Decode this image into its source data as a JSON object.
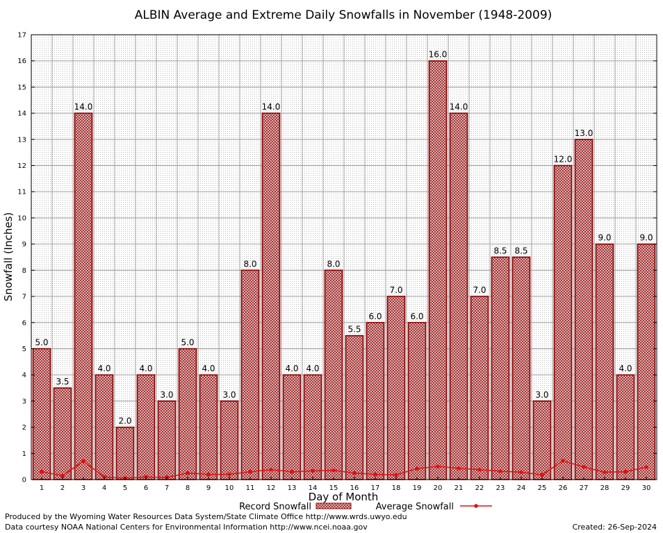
{
  "chart_data": {
    "type": "bar",
    "title": "ALBIN Average and Extreme Daily Snowfalls in November (1948-2009)",
    "xlabel": "Day of Month",
    "ylabel": "Snowfall (Inches)",
    "ylim": [
      0,
      17
    ],
    "yticks": [
      0,
      1,
      2,
      3,
      4,
      5,
      6,
      7,
      8,
      9,
      10,
      11,
      12,
      13,
      14,
      15,
      16,
      17
    ],
    "grid": true,
    "categories": [
      "1",
      "2",
      "3",
      "4",
      "5",
      "6",
      "7",
      "8",
      "9",
      "10",
      "11",
      "12",
      "13",
      "14",
      "15",
      "16",
      "17",
      "18",
      "19",
      "20",
      "21",
      "22",
      "23",
      "24",
      "25",
      "26",
      "27",
      "28",
      "29",
      "30"
    ],
    "series": [
      {
        "name": "Record Snowfall",
        "kind": "bar",
        "values": [
          5.0,
          3.5,
          14.0,
          4.0,
          2.0,
          4.0,
          3.0,
          5.0,
          4.0,
          3.0,
          8.0,
          14.0,
          4.0,
          4.0,
          8.0,
          5.5,
          6.0,
          7.0,
          6.0,
          16.0,
          14.0,
          7.0,
          8.5,
          8.5,
          3.0,
          12.0,
          13.0,
          9.0,
          4.0,
          9.0
        ],
        "labels": [
          "5.0",
          "3.5",
          "14.0",
          "4.0",
          "2.0",
          "4.0",
          "3.0",
          "5.0",
          "4.0",
          "3.0",
          "8.0",
          "14.0",
          "4.0",
          "4.0",
          "8.0",
          "5.5",
          "6.0",
          "7.0",
          "6.0",
          "16.0",
          "14.0",
          "7.0",
          "8.5",
          "8.5",
          "3.0",
          "12.0",
          "13.0",
          "9.0",
          "4.0",
          "9.0"
        ]
      },
      {
        "name": "Average Snowfall",
        "kind": "line",
        "values": [
          0.3,
          0.15,
          0.7,
          0.1,
          0.05,
          0.1,
          0.08,
          0.25,
          0.2,
          0.2,
          0.3,
          0.38,
          0.3,
          0.33,
          0.35,
          0.25,
          0.2,
          0.18,
          0.42,
          0.5,
          0.43,
          0.38,
          0.32,
          0.28,
          0.18,
          0.72,
          0.48,
          0.28,
          0.3,
          0.48
        ]
      }
    ],
    "legend_position": "bottom"
  },
  "colors": {
    "bar_stroke": "#8b0000",
    "bar_fill": "#b03030",
    "avg_line": "#e01010",
    "grid": "#a0a0a0"
  },
  "footer": {
    "credit_1": "Produced by the Wyoming Water Resources Data System/State Climate Office http://www.wrds.uwyo.edu",
    "credit_2": "Data courtesy NOAA National Centers for Environmental Information http://www.ncei.noaa.gov",
    "created": "Created:  26-Sep-2024"
  }
}
